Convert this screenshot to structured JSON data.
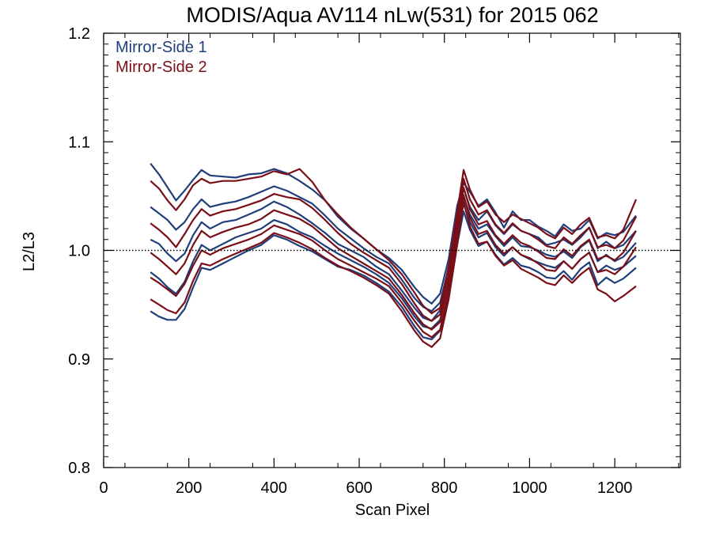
{
  "chart_data": {
    "type": "line",
    "title": "MODIS/Aqua AV114 nLw(531) for 2015 062",
    "xlabel": "Scan Pixel",
    "ylabel": "L2/L3",
    "xlim": [
      0,
      1354
    ],
    "ylim": [
      0.8,
      1.2
    ],
    "xticks": [
      0,
      200,
      400,
      600,
      800,
      1000,
      1200
    ],
    "yticks": [
      0.8,
      0.9,
      1.0,
      1.1,
      1.2
    ],
    "xtick_labels": [
      "0",
      "200",
      "400",
      "600",
      "800",
      "1000",
      "1200"
    ],
    "ytick_labels": [
      "0.8",
      "0.9",
      "1.0",
      "1.1",
      "1.2"
    ],
    "grid": false,
    "reference_line": {
      "y": 1.0,
      "style": "dotted"
    },
    "legend": {
      "placement": "top-left",
      "entries": [
        "Mirror-Side 1",
        "Mirror-Side 2"
      ]
    },
    "colors": {
      "Mirror-Side 1": "#1f3f7a",
      "Mirror-Side 2": "#7a0f18"
    },
    "x": [
      110,
      130,
      150,
      170,
      190,
      210,
      230,
      250,
      280,
      310,
      340,
      370,
      400,
      430,
      460,
      490,
      520,
      550,
      580,
      610,
      640,
      670,
      700,
      730,
      750,
      770,
      790,
      810,
      830,
      845,
      860,
      880,
      900,
      920,
      940,
      960,
      980,
      1000,
      1020,
      1040,
      1060,
      1080,
      1100,
      1120,
      1140,
      1160,
      1180,
      1200,
      1220,
      1250
    ],
    "series": [
      {
        "name": "Mirror-Side 1",
        "values": [
          1.08,
          1.07,
          1.058,
          1.046,
          1.055,
          1.065,
          1.074,
          1.069,
          1.068,
          1.067,
          1.07,
          1.071,
          1.075,
          1.071,
          1.064,
          1.056,
          1.046,
          1.031,
          1.02,
          1.011,
          1.001,
          0.993,
          0.982,
          0.966,
          0.957,
          0.951,
          0.96,
          0.992,
          1.041,
          1.062,
          1.054,
          1.041,
          1.047,
          1.035,
          1.021,
          1.036,
          1.028,
          1.028,
          1.022,
          1.018,
          1.013,
          1.024,
          1.018,
          1.02,
          1.028,
          1.011,
          1.016,
          1.014,
          1.017,
          1.032
        ]
      },
      {
        "name": "Mirror-Side 1",
        "values": [
          1.04,
          1.034,
          1.028,
          1.019,
          1.026,
          1.038,
          1.047,
          1.04,
          1.043,
          1.045,
          1.049,
          1.054,
          1.059,
          1.055,
          1.049,
          1.043,
          1.032,
          1.02,
          1.011,
          1.002,
          0.994,
          0.988,
          0.973,
          0.956,
          0.948,
          0.944,
          0.952,
          0.984,
          1.029,
          1.057,
          1.04,
          1.028,
          1.036,
          1.023,
          1.015,
          1.024,
          1.018,
          1.015,
          1.012,
          1.005,
          1.007,
          1.01,
          1.005,
          1.012,
          1.021,
          1.002,
          1.008,
          1.002,
          1.005,
          1.018
        ]
      },
      {
        "name": "Mirror-Side 1",
        "values": [
          1.01,
          1.006,
          0.997,
          0.99,
          0.997,
          1.014,
          1.026,
          1.02,
          1.026,
          1.028,
          1.033,
          1.038,
          1.045,
          1.04,
          1.033,
          1.025,
          1.016,
          1.006,
          1.0,
          0.994,
          0.985,
          0.978,
          0.963,
          0.947,
          0.938,
          0.935,
          0.945,
          0.976,
          1.022,
          1.049,
          1.033,
          1.02,
          1.024,
          1.013,
          1.004,
          1.012,
          1.004,
          1.003,
          1.0,
          0.996,
          0.994,
          0.999,
          0.993,
          1.003,
          1.009,
          0.99,
          0.996,
          0.99,
          0.994,
          1.007
        ]
      },
      {
        "name": "Mirror-Side 1",
        "values": [
          0.98,
          0.974,
          0.966,
          0.96,
          0.971,
          0.99,
          1.005,
          1.0,
          1.006,
          1.012,
          1.016,
          1.02,
          1.028,
          1.024,
          1.017,
          1.012,
          1.004,
          0.997,
          0.991,
          0.985,
          0.978,
          0.97,
          0.956,
          0.939,
          0.93,
          0.928,
          0.936,
          0.968,
          1.013,
          1.043,
          1.026,
          1.012,
          1.016,
          1.003,
          0.995,
          1.003,
          0.996,
          0.992,
          0.989,
          0.986,
          0.984,
          0.99,
          0.983,
          0.992,
          0.998,
          0.98,
          0.986,
          0.982,
          0.985,
          0.995
        ]
      },
      {
        "name": "Mirror-Side 1",
        "values": [
          0.944,
          0.939,
          0.936,
          0.936,
          0.946,
          0.966,
          0.984,
          0.982,
          0.988,
          0.994,
          1.0,
          1.005,
          1.014,
          1.01,
          1.004,
          0.999,
          0.992,
          0.985,
          0.982,
          0.977,
          0.97,
          0.962,
          0.948,
          0.93,
          0.92,
          0.918,
          0.926,
          0.958,
          1.005,
          1.036,
          1.019,
          1.004,
          1.008,
          0.996,
          0.987,
          0.993,
          0.986,
          0.984,
          0.98,
          0.975,
          0.974,
          0.981,
          0.973,
          0.983,
          0.989,
          0.968,
          0.975,
          0.97,
          0.974,
          0.984
        ]
      },
      {
        "name": "Mirror-Side 2",
        "values": [
          1.064,
          1.057,
          1.046,
          1.037,
          1.047,
          1.06,
          1.066,
          1.062,
          1.064,
          1.064,
          1.066,
          1.068,
          1.073,
          1.07,
          1.075,
          1.063,
          1.046,
          1.033,
          1.021,
          1.011,
          1.001,
          0.991,
          0.978,
          0.961,
          0.949,
          0.942,
          0.947,
          0.985,
          1.035,
          1.074,
          1.056,
          1.04,
          1.045,
          1.033,
          1.026,
          1.033,
          1.029,
          1.025,
          1.021,
          1.015,
          1.011,
          1.021,
          1.015,
          1.024,
          1.03,
          1.012,
          1.014,
          1.011,
          1.019,
          1.047
        ]
      },
      {
        "name": "Mirror-Side 2",
        "values": [
          1.025,
          1.019,
          1.012,
          1.003,
          1.015,
          1.028,
          1.038,
          1.032,
          1.036,
          1.038,
          1.042,
          1.046,
          1.052,
          1.049,
          1.047,
          1.039,
          1.028,
          1.016,
          1.006,
          0.998,
          0.991,
          0.984,
          0.969,
          0.951,
          0.94,
          0.935,
          0.941,
          0.977,
          1.028,
          1.066,
          1.047,
          1.033,
          1.037,
          1.024,
          1.016,
          1.025,
          1.018,
          1.015,
          1.01,
          1.004,
          1.002,
          1.012,
          1.006,
          1.014,
          1.021,
          1.003,
          1.005,
          1.002,
          1.009,
          1.031
        ]
      },
      {
        "name": "Mirror-Side 2",
        "values": [
          0.998,
          0.992,
          0.985,
          0.978,
          0.988,
          1.005,
          1.018,
          1.012,
          1.017,
          1.021,
          1.024,
          1.029,
          1.037,
          1.033,
          1.029,
          1.022,
          1.012,
          1.002,
          0.995,
          0.988,
          0.981,
          0.974,
          0.959,
          0.942,
          0.932,
          0.927,
          0.934,
          0.97,
          1.02,
          1.058,
          1.038,
          1.024,
          1.027,
          1.014,
          1.006,
          1.014,
          1.007,
          1.004,
          0.999,
          0.993,
          0.992,
          1.001,
          0.995,
          1.004,
          1.01,
          0.992,
          0.995,
          0.991,
          0.998,
          1.018
        ]
      },
      {
        "name": "Mirror-Side 2",
        "values": [
          0.975,
          0.97,
          0.964,
          0.958,
          0.969,
          0.986,
          1.0,
          0.996,
          1.002,
          1.006,
          1.01,
          1.015,
          1.023,
          1.019,
          1.015,
          1.009,
          1.0,
          0.992,
          0.986,
          0.98,
          0.974,
          0.967,
          0.952,
          0.935,
          0.925,
          0.92,
          0.927,
          0.962,
          1.012,
          1.051,
          1.03,
          1.015,
          1.018,
          1.005,
          0.997,
          1.003,
          0.996,
          0.993,
          0.988,
          0.982,
          0.981,
          0.99,
          0.983,
          0.992,
          0.998,
          0.98,
          0.982,
          0.978,
          0.985,
          1.003
        ]
      },
      {
        "name": "Mirror-Side 2",
        "values": [
          0.955,
          0.95,
          0.945,
          0.942,
          0.952,
          0.972,
          0.988,
          0.986,
          0.992,
          0.997,
          1.002,
          1.007,
          1.016,
          1.012,
          1.007,
          1.001,
          0.993,
          0.986,
          0.981,
          0.975,
          0.968,
          0.96,
          0.944,
          0.926,
          0.916,
          0.911,
          0.919,
          0.955,
          1.005,
          1.045,
          1.022,
          1.006,
          1.008,
          0.995,
          0.986,
          0.991,
          0.983,
          0.979,
          0.975,
          0.97,
          0.968,
          0.977,
          0.97,
          0.978,
          0.984,
          0.964,
          0.96,
          0.953,
          0.958,
          0.967
        ]
      }
    ]
  }
}
